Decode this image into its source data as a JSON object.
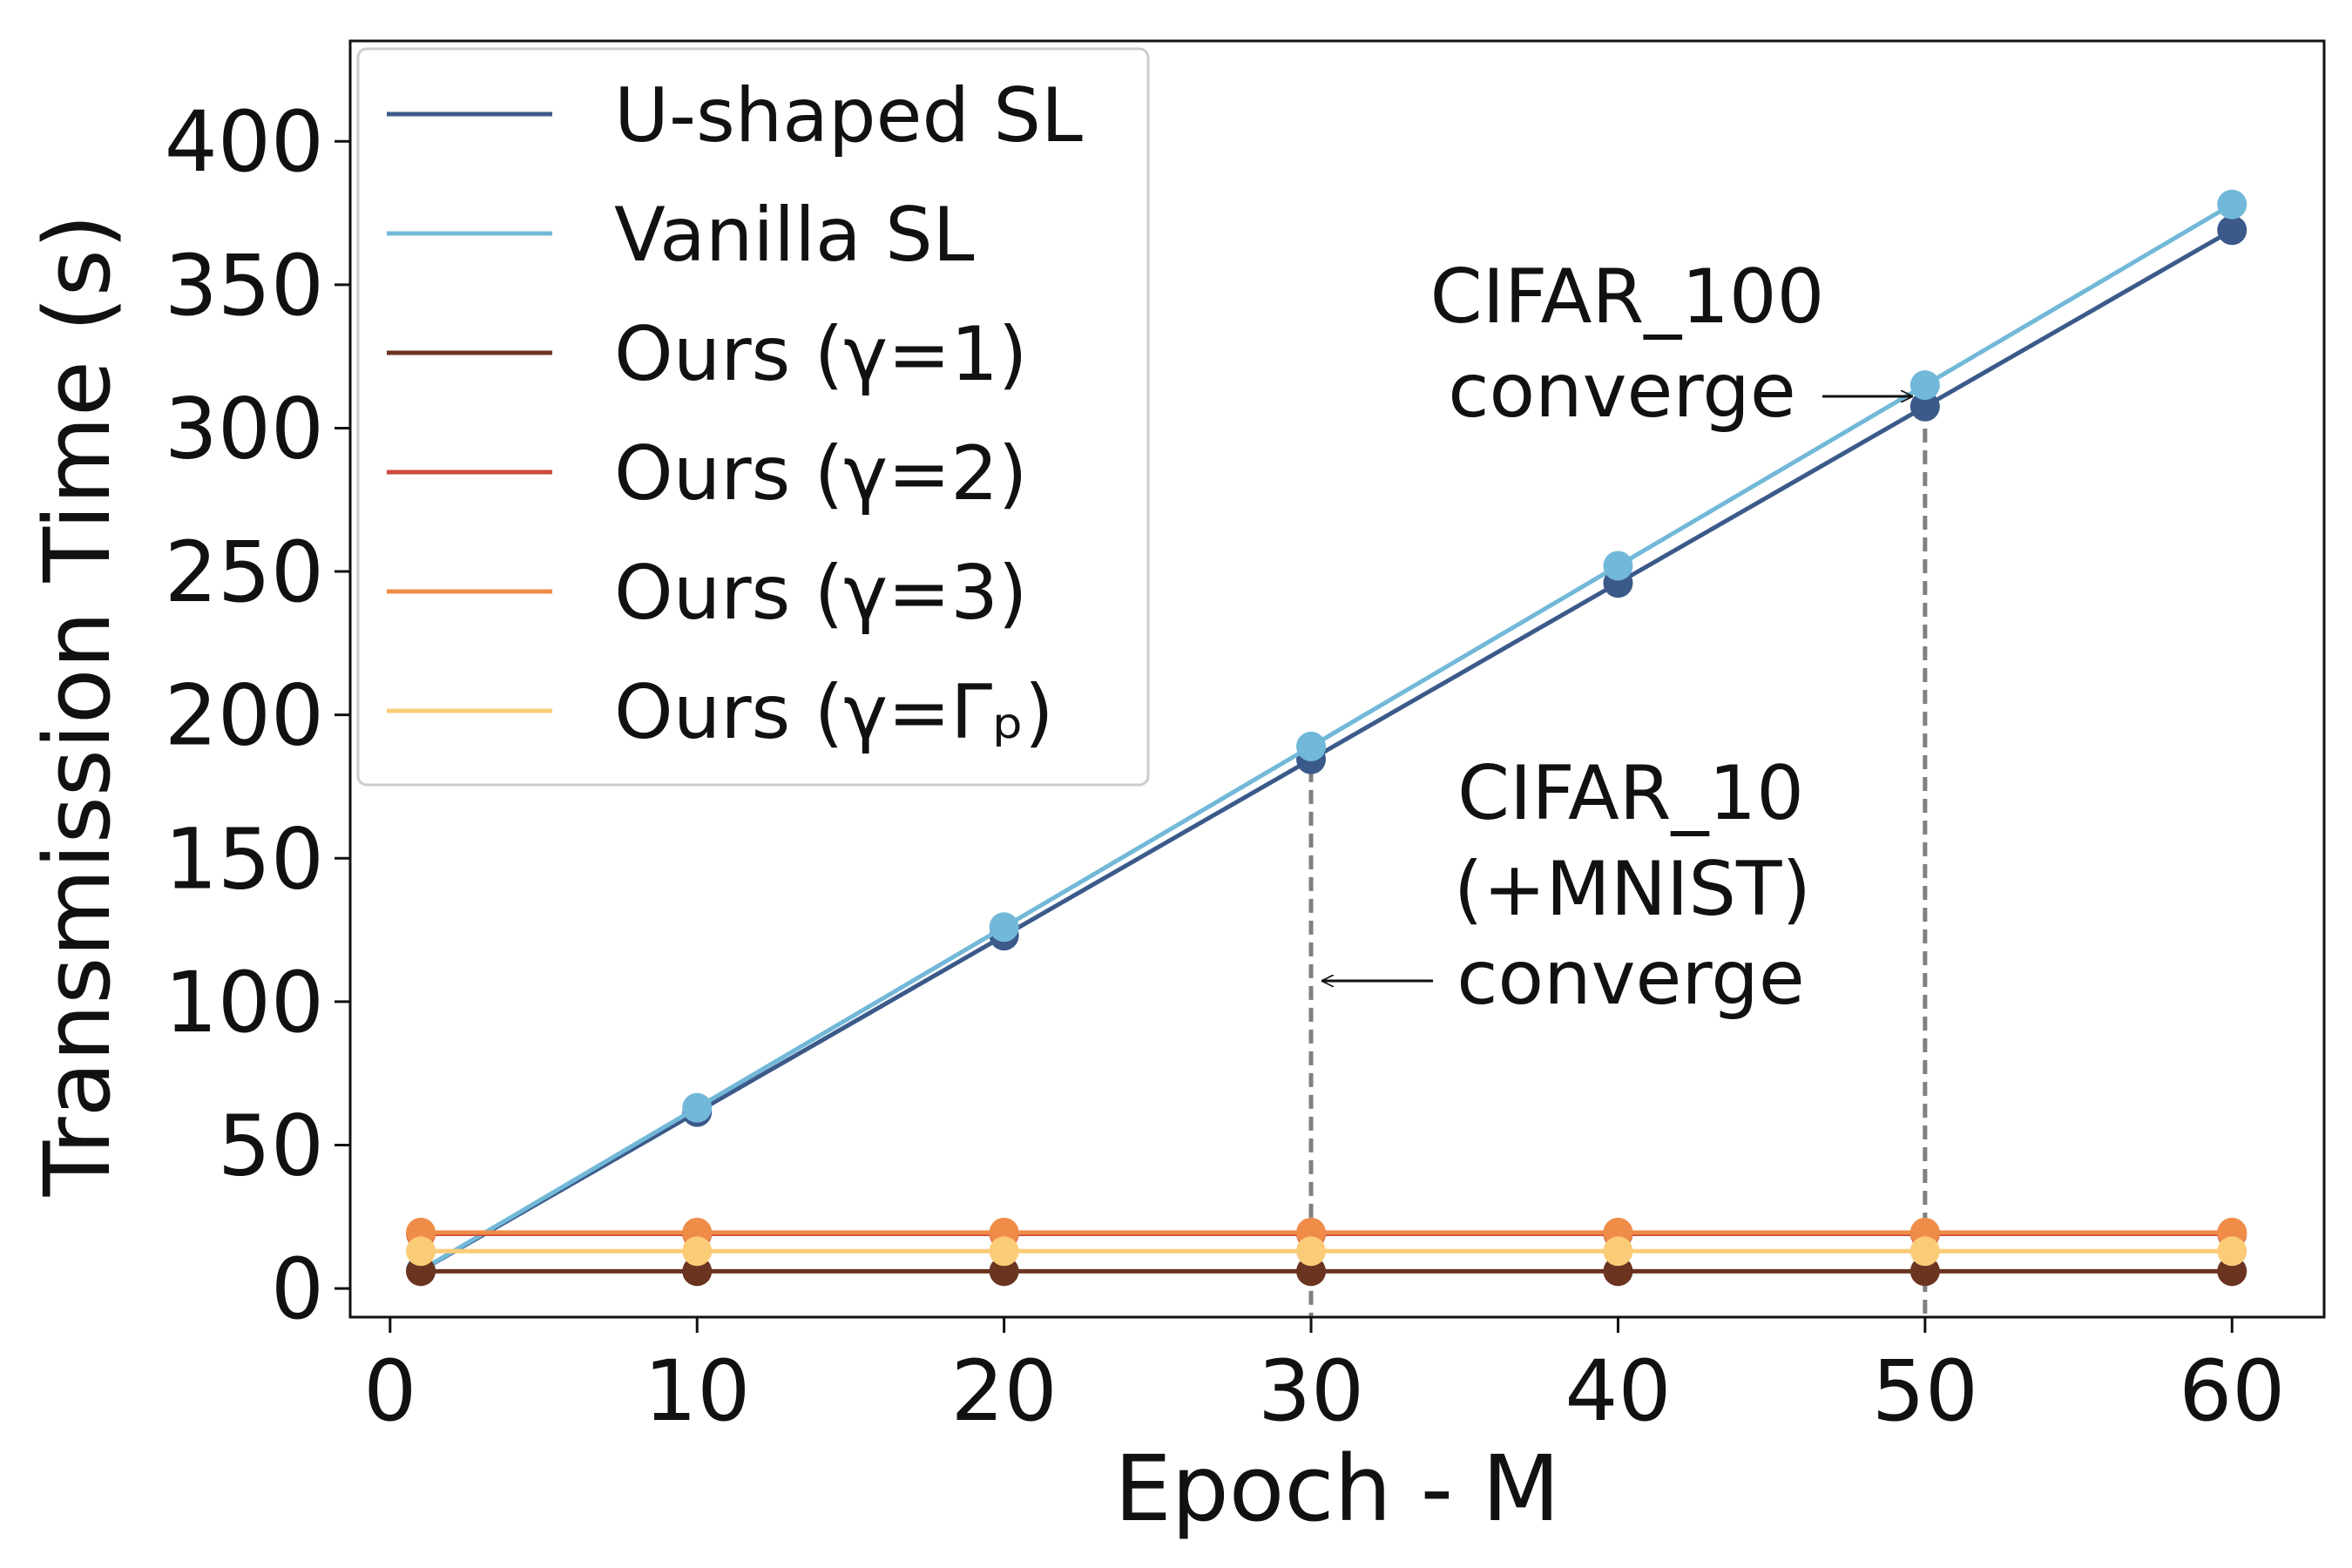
{
  "chart_data": {
    "type": "line",
    "title": "",
    "xlabel": "Epoch - M",
    "ylabel": "Transmission Time (s)",
    "x": [
      1,
      10,
      20,
      30,
      40,
      50,
      60
    ],
    "xlim": [
      -1.3,
      63
    ],
    "ylim": [
      -10,
      435
    ],
    "xticks": [
      0,
      10,
      20,
      30,
      40,
      50,
      60
    ],
    "yticks": [
      0,
      50,
      100,
      150,
      200,
      250,
      300,
      350,
      400
    ],
    "grid": false,
    "legend_position": "top-left",
    "series": [
      {
        "name": "U-shaped SL",
        "color": "#3b5a8a",
        "values": [
          6.2,
          61.5,
          123,
          184.5,
          246,
          307.5,
          369
        ]
      },
      {
        "name": "Vanilla SL",
        "color": "#72b8d8",
        "values": [
          6.3,
          63,
          126,
          189,
          252,
          315,
          378
        ]
      },
      {
        "name": "Ours (γ=1)",
        "color": "#6b3420",
        "values": [
          6,
          6,
          6,
          6,
          6,
          6,
          6
        ]
      },
      {
        "name": "Ours (γ=2)",
        "color": "#cc4a3c",
        "values": [
          19,
          19,
          19,
          19,
          19,
          19,
          19
        ]
      },
      {
        "name": "Ours (γ=3)",
        "color": "#ee8c48",
        "values": [
          19.5,
          19.5,
          19.5,
          19.5,
          19.5,
          19.5,
          19.5
        ]
      },
      {
        "name": "Ours (γ=Γₚ)",
        "color": "#fbcc78",
        "values": [
          13,
          13,
          13,
          13,
          13,
          13,
          13
        ]
      }
    ],
    "annotations": [
      {
        "lines": [
          "CIFAR_100",
          "converge"
        ],
        "x": 50,
        "y": 310
      },
      {
        "lines": [
          "CIFAR_10",
          "(+MNIST)",
          "converge"
        ],
        "x": 30,
        "y": 107
      }
    ],
    "vlines": [
      30,
      50
    ]
  }
}
